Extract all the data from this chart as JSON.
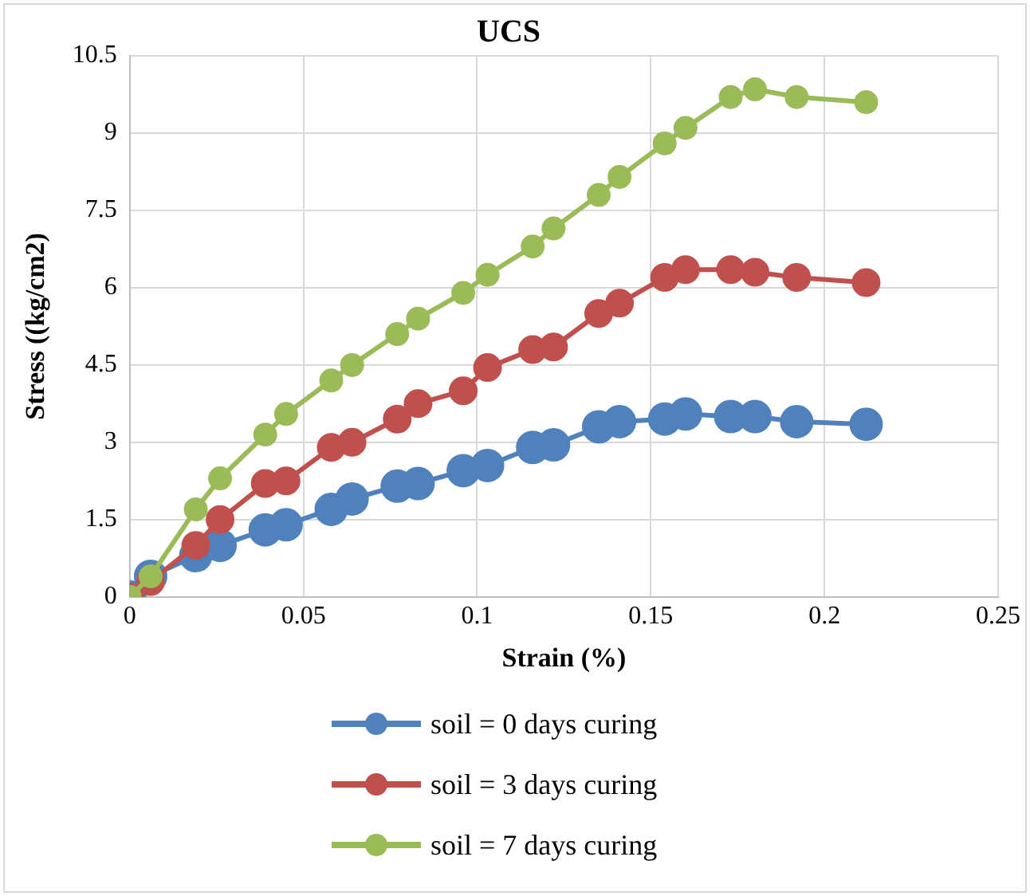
{
  "chart_data": {
    "type": "line",
    "title": "UCS",
    "xlabel": "Strain (%)",
    "ylabel": "Stress ((kg/cm2)",
    "x": [
      0,
      0.006,
      0.019,
      0.026,
      0.039,
      0.045,
      0.058,
      0.064,
      0.077,
      0.083,
      0.096,
      0.103,
      0.116,
      0.122,
      0.135,
      0.141,
      0.154,
      0.16,
      0.173,
      0.18,
      0.192,
      0.212
    ],
    "series": [
      {
        "name": "soil = 0 days curing",
        "color": "#4f81bd",
        "values": [
          0,
          0.4,
          0.8,
          1.0,
          1.3,
          1.4,
          1.7,
          1.9,
          2.15,
          2.2,
          2.45,
          2.55,
          2.9,
          2.95,
          3.3,
          3.4,
          3.45,
          3.55,
          3.5,
          3.5,
          3.4,
          3.35
        ]
      },
      {
        "name": "soil = 3 days curing",
        "color": "#c0504d",
        "values": [
          0,
          0.3,
          1.0,
          1.5,
          2.2,
          2.25,
          2.9,
          3.0,
          3.45,
          3.75,
          4.0,
          4.45,
          4.8,
          4.85,
          5.5,
          5.7,
          6.2,
          6.35,
          6.35,
          6.3,
          6.2,
          6.1
        ]
      },
      {
        "name": "soil = 7 days curing",
        "color": "#9bbb59",
        "values": [
          0,
          0.4,
          1.7,
          2.3,
          3.15,
          3.55,
          4.2,
          4.5,
          5.1,
          5.4,
          5.9,
          6.25,
          6.8,
          7.15,
          7.8,
          8.15,
          8.8,
          9.1,
          9.7,
          9.85,
          9.7,
          9.6
        ]
      }
    ],
    "xlim": [
      0,
      0.25
    ],
    "xticks": [
      0,
      0.05,
      0.1,
      0.15,
      0.2,
      0.25
    ],
    "ylim": [
      0,
      10.5
    ],
    "yticks": [
      0,
      1.5,
      3,
      4.5,
      6,
      7.5,
      9,
      10.5
    ],
    "grid": true,
    "legend": "bottom",
    "marker": "circle",
    "line_style": "solid"
  }
}
